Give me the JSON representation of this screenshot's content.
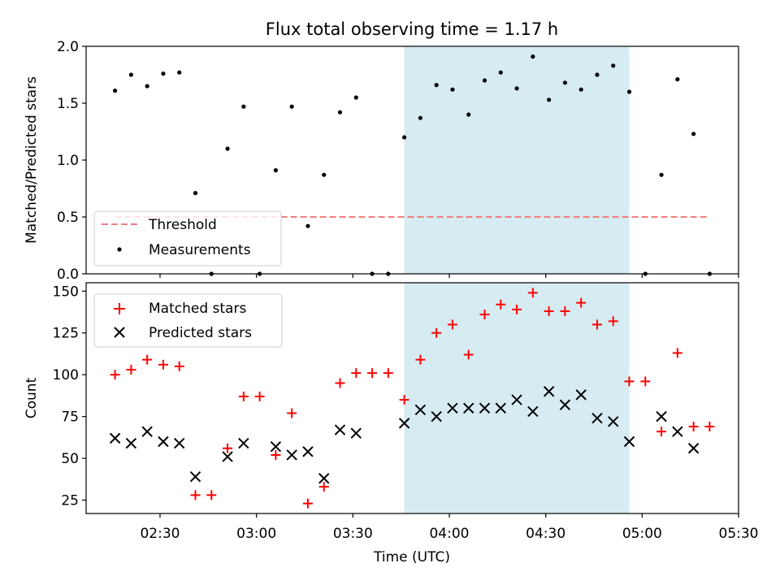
{
  "title": "Flux total observing time = 1.17 h",
  "xlabel": "Time (UTC)",
  "x_ticks": [
    "02:30",
    "03:00",
    "03:30",
    "04:00",
    "04:30",
    "05:00",
    "05:30"
  ],
  "x_range": [
    "02:07",
    "05:30"
  ],
  "shaded_interval": [
    "03:46",
    "04:56"
  ],
  "colors": {
    "shade": "#add8e6",
    "threshold": "#f08080",
    "measurements": "#000000",
    "matched": "#ff0000",
    "predicted": "#000000"
  },
  "chart_data": [
    {
      "type": "scatter",
      "ylabel": "Matched/Predicted stars",
      "ylim": [
        0,
        2.0
      ],
      "y_ticks": [
        "0.0",
        "0.5",
        "1.0",
        "1.5",
        "2.0"
      ],
      "legend_position": "lower-left",
      "threshold": {
        "name": "Threshold",
        "y": 0.5,
        "x_range": [
          "02:16",
          "05:21"
        ]
      },
      "series": [
        {
          "name": "Measurements",
          "points": [
            [
              "02:16",
              1.61
            ],
            [
              "02:21",
              1.75
            ],
            [
              "02:26",
              1.65
            ],
            [
              "02:31",
              1.76
            ],
            [
              "02:36",
              1.77
            ],
            [
              "02:41",
              0.71
            ],
            [
              "02:46",
              0.0
            ],
            [
              "02:51",
              1.1
            ],
            [
              "02:56",
              1.47
            ],
            [
              "03:01",
              0.0
            ],
            [
              "03:06",
              0.91
            ],
            [
              "03:11",
              1.47
            ],
            [
              "03:16",
              0.42
            ],
            [
              "03:21",
              0.87
            ],
            [
              "03:26",
              1.42
            ],
            [
              "03:31",
              1.55
            ],
            [
              "03:36",
              0.0
            ],
            [
              "03:41",
              0.0
            ],
            [
              "03:46",
              1.2
            ],
            [
              "03:51",
              1.37
            ],
            [
              "03:56",
              1.66
            ],
            [
              "04:01",
              1.62
            ],
            [
              "04:06",
              1.4
            ],
            [
              "04:11",
              1.7
            ],
            [
              "04:16",
              1.77
            ],
            [
              "04:21",
              1.63
            ],
            [
              "04:26",
              1.91
            ],
            [
              "04:31",
              1.53
            ],
            [
              "04:36",
              1.68
            ],
            [
              "04:41",
              1.62
            ],
            [
              "04:46",
              1.75
            ],
            [
              "04:51",
              1.83
            ],
            [
              "04:56",
              1.6
            ],
            [
              "05:01",
              0.0
            ],
            [
              "05:06",
              0.87
            ],
            [
              "05:11",
              1.71
            ],
            [
              "05:16",
              1.23
            ],
            [
              "05:21",
              0.0
            ]
          ]
        }
      ]
    },
    {
      "type": "scatter",
      "ylabel": "Count",
      "ylim": [
        17,
        155
      ],
      "y_ticks": [
        "25",
        "50",
        "75",
        "100",
        "125",
        "150"
      ],
      "legend_position": "top-left",
      "series": [
        {
          "name": "Matched stars",
          "marker": "plus",
          "points": [
            [
              "02:16",
              100
            ],
            [
              "02:21",
              103
            ],
            [
              "02:26",
              109
            ],
            [
              "02:31",
              106
            ],
            [
              "02:36",
              105
            ],
            [
              "02:41",
              28
            ],
            [
              "02:46",
              28
            ],
            [
              "02:51",
              56
            ],
            [
              "02:56",
              87
            ],
            [
              "03:01",
              87
            ],
            [
              "03:06",
              52
            ],
            [
              "03:11",
              77
            ],
            [
              "03:16",
              23
            ],
            [
              "03:21",
              33
            ],
            [
              "03:26",
              95
            ],
            [
              "03:31",
              101
            ],
            [
              "03:36",
              101
            ],
            [
              "03:41",
              101
            ],
            [
              "03:46",
              85
            ],
            [
              "03:51",
              109
            ],
            [
              "03:56",
              125
            ],
            [
              "04:01",
              130
            ],
            [
              "04:06",
              112
            ],
            [
              "04:11",
              136
            ],
            [
              "04:16",
              142
            ],
            [
              "04:21",
              139
            ],
            [
              "04:26",
              149
            ],
            [
              "04:31",
              138
            ],
            [
              "04:36",
              138
            ],
            [
              "04:41",
              143
            ],
            [
              "04:46",
              130
            ],
            [
              "04:51",
              132
            ],
            [
              "04:56",
              96
            ],
            [
              "05:01",
              96
            ],
            [
              "05:06",
              66
            ],
            [
              "05:11",
              113
            ],
            [
              "05:16",
              69
            ],
            [
              "05:21",
              69
            ]
          ]
        },
        {
          "name": "Predicted stars",
          "marker": "x",
          "points": [
            [
              "02:16",
              62
            ],
            [
              "02:21",
              59
            ],
            [
              "02:26",
              66
            ],
            [
              "02:31",
              60
            ],
            [
              "02:36",
              59
            ],
            [
              "02:41",
              39
            ],
            [
              "02:51",
              51
            ],
            [
              "02:56",
              59
            ],
            [
              "03:06",
              57
            ],
            [
              "03:11",
              52
            ],
            [
              "03:16",
              54
            ],
            [
              "03:21",
              38
            ],
            [
              "03:26",
              67
            ],
            [
              "03:31",
              65
            ],
            [
              "03:46",
              71
            ],
            [
              "03:51",
              79
            ],
            [
              "03:56",
              75
            ],
            [
              "04:01",
              80
            ],
            [
              "04:06",
              80
            ],
            [
              "04:11",
              80
            ],
            [
              "04:16",
              80
            ],
            [
              "04:21",
              85
            ],
            [
              "04:26",
              78
            ],
            [
              "04:31",
              90
            ],
            [
              "04:36",
              82
            ],
            [
              "04:41",
              88
            ],
            [
              "04:46",
              74
            ],
            [
              "04:51",
              72
            ],
            [
              "04:56",
              60
            ],
            [
              "05:06",
              75
            ],
            [
              "05:11",
              66
            ],
            [
              "05:16",
              56
            ]
          ]
        }
      ]
    }
  ]
}
